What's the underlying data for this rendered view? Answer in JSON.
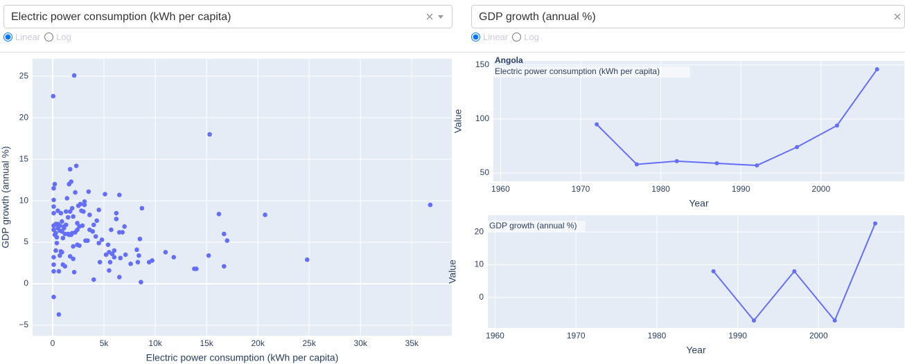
{
  "controls": {
    "dropdowns": [
      "Electric power consumption (kWh per capita)",
      "GDP growth (annual %)"
    ],
    "radio_options": [
      "Linear",
      "Log"
    ]
  },
  "chart_data": [
    {
      "type": "scatter",
      "color": "#636efa",
      "grid": true,
      "x_label": "Electric power consumption (kWh per capita)",
      "y_label": "GDP growth (annual %)",
      "xlim": [
        -1960,
        38900
      ],
      "ylim": [
        -6.25,
        27.1
      ],
      "xticks": [
        0,
        {
          "value": 5000,
          "label": "5k"
        },
        {
          "value": 10000,
          "label": "10k"
        },
        {
          "value": 15000,
          "label": "15k"
        },
        {
          "value": 20000,
          "label": "20k"
        },
        {
          "value": 25000,
          "label": "25k"
        },
        {
          "value": 30000,
          "label": "30k"
        },
        {
          "value": 35000,
          "label": "35k"
        }
      ],
      "yticks": [
        {
          "value": -5,
          "label": "−5"
        },
        0,
        5,
        10,
        15,
        20,
        25
      ],
      "x": [
        2100,
        50,
        15300,
        36800,
        20700,
        24800,
        16200,
        16700,
        17000,
        16700,
        15200,
        13800,
        14000,
        11800,
        11000,
        9700,
        9400,
        8700,
        8600,
        8500,
        8400,
        8200,
        8300,
        7600,
        7000,
        7100,
        6800,
        6500,
        6600,
        6500,
        6200,
        6200,
        6500,
        6000,
        6000,
        5800,
        5700,
        5600,
        5500,
        5400,
        5200,
        5100,
        5500,
        4800,
        4600,
        4500,
        4500,
        4300,
        4200,
        4000,
        4000,
        3900,
        3600,
        3600,
        3500,
        3400,
        3200,
        3100,
        3100,
        2900,
        2700,
        2800,
        2600,
        2500,
        2400,
        2400,
        2300,
        2200,
        2200,
        2000,
        1900,
        1800,
        1700,
        1600,
        1700,
        1600,
        1500,
        1400,
        1300,
        1200,
        1100,
        1000,
        1000,
        900,
        900,
        800,
        700,
        700,
        600,
        600,
        500,
        400,
        300,
        200,
        100,
        100,
        100,
        100,
        100,
        100,
        100,
        100,
        100,
        100,
        300,
        200,
        500,
        1300,
        1900,
        2000,
        2100,
        1700,
        1800,
        2400,
        2600,
        3000,
        1200,
        800,
        400,
        2000,
        1500,
        1100,
        900,
        700,
        500,
        300
      ],
      "values": [
        25.1,
        22.6,
        18,
        9.5,
        8.3,
        2.9,
        8.4,
        6,
        5.2,
        2.1,
        3.4,
        1.8,
        1.8,
        3.2,
        3.8,
        2.8,
        2.6,
        9.1,
        0.2,
        5.4,
        3.4,
        4.1,
        2.6,
        2.4,
        6.9,
        3.5,
        6.2,
        6.2,
        3.1,
        10.7,
        8.5,
        7.8,
        0.8,
        3.2,
        4.0,
        3.6,
        6.5,
        2.6,
        3.8,
        4.7,
        3.5,
        10.8,
        1.6,
        5.3,
        2.6,
        8.9,
        4.9,
        7.6,
        5.7,
        7.1,
        0.5,
        6.3,
        6.5,
        8.3,
        11.1,
        5.2,
        5.2,
        9.5,
        9.9,
        7.0,
        9.6,
        8.8,
        6.9,
        9.4,
        7.3,
        4.7,
        14.2,
        11,
        6.2,
        8.1,
        9.1,
        12.3,
        13.8,
        12.0,
        8.7,
        5.9,
        6.0,
        10.3,
        7.1,
        6.0,
        6.7,
        5.5,
        2.3,
        7.5,
        3.8,
        8.5,
        6.4,
        3.4,
        1.5,
        -3.7,
        7.2,
        4.9,
        6.1,
        12.0,
        11.5,
        10.1,
        9.3,
        8.5,
        7.0,
        6.5,
        3.2,
        2.3,
        1.5,
        -1.6,
        4.0,
        5.9,
        8.8,
        8.7,
        6.1,
        3.0,
        1.4,
        3.3,
        5.9,
        6.5,
        4.6,
        8.7,
        2.1,
        3.9,
        5.6,
        4.5,
        8.0,
        6.9,
        6.3,
        7.0,
        6.7,
        7.2
      ]
    },
    {
      "type": "line",
      "color": "#636efa",
      "grid": true,
      "title": "Angola",
      "subtitle": "Electric power consumption (kWh per capita)",
      "x_label": "Year",
      "y_label": "Value",
      "xlim": [
        1959.1,
        2010.4
      ],
      "ylim": [
        42.3,
        153.8
      ],
      "xticks": [
        1960,
        1970,
        1980,
        1990,
        2000
      ],
      "yticks": [
        50,
        100,
        150
      ],
      "x": [
        1972,
        1977,
        1982,
        1987,
        1992,
        1997,
        2002,
        2007
      ],
      "values": [
        95,
        58,
        61,
        59,
        57,
        74,
        94,
        146
      ]
    },
    {
      "type": "line",
      "color": "#636efa",
      "grid": true,
      "subtitle": "GDP growth (annual %)",
      "x_label": "Year",
      "y_label": "Value",
      "xlim": [
        1959.1,
        2010.6
      ],
      "ylim": [
        -9.3,
        25.1
      ],
      "xticks": [
        1960,
        1970,
        1980,
        1990,
        2000
      ],
      "yticks": [
        0,
        10,
        20
      ],
      "x": [
        1987,
        1992,
        1997,
        2002,
        2007
      ],
      "values": [
        8,
        -7,
        8,
        -7,
        22.6
      ]
    }
  ]
}
